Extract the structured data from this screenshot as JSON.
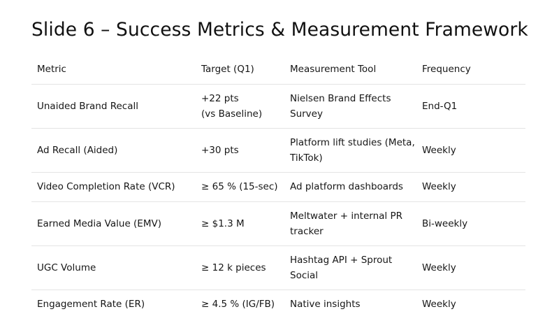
{
  "slide": {
    "title": "Slide 6 – Success Metrics & Measurement Framework"
  },
  "table": {
    "headers": [
      "Metric",
      "Target (Q1)",
      "Measurement Tool",
      "Frequency"
    ],
    "rows": [
      {
        "metric": "Unaided Brand Recall",
        "target_line1": "+22 pts",
        "target_line2": "(vs Baseline)",
        "tool_line1": "Nielsen Brand Effects",
        "tool_line2": "Survey",
        "frequency": "End-Q1"
      },
      {
        "metric": "Ad Recall (Aided)",
        "target": "+30 pts",
        "tool_line1": "Platform lift studies (Meta,",
        "tool_line2": "TikTok)",
        "frequency": "Weekly"
      },
      {
        "metric": "Video Completion Rate (VCR)",
        "target": "≥ 65 % (15-sec)",
        "tool": "Ad platform dashboards",
        "frequency": "Weekly"
      },
      {
        "metric": "Earned Media Value (EMV)",
        "target": "≥ $1.3 M",
        "tool_line1": "Meltwater + internal PR",
        "tool_line2": "tracker",
        "frequency": "Bi-weekly"
      },
      {
        "metric": "UGC Volume",
        "target": "≥ 12 k pieces",
        "tool_line1": "Hashtag API + Sprout",
        "tool_line2": "Social",
        "frequency": "Weekly"
      },
      {
        "metric": "Engagement Rate (ER)",
        "target": "≥ 4.5 % (IG/FB)",
        "tool": "Native insights",
        "frequency": "Weekly"
      }
    ]
  }
}
